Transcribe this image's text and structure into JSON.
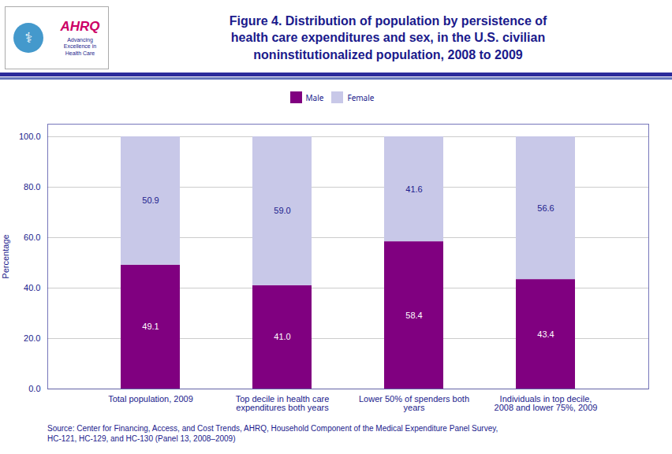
{
  "chart_data": {
    "type": "bar",
    "stacked": true,
    "title": "Figure 4. Distribution of population by persistence of\nhealth care expenditures and sex, in the U.S. civilian\nnoninstitutionalized  population, 2008 to 2009",
    "ylabel": "Percentage",
    "categories": [
      "Total population, 2009",
      "Top decile in health care\nexpenditures both years",
      "Lower 50% of spenders both\nyears",
      "Individuals in top decile,\n2008 and lower 75%, 2009"
    ],
    "series": [
      {
        "name": "Male",
        "color": "#800080",
        "values": [
          49.1,
          41.0,
          58.4,
          43.4
        ],
        "value_labels": [
          "49.1",
          "41.0",
          "58.4",
          "43.4"
        ]
      },
      {
        "name": "Female",
        "color": "#c8c8e8",
        "values": [
          50.9,
          59.0,
          41.6,
          56.6
        ],
        "value_labels": [
          "50.9",
          "59.0",
          "41.6",
          "56.6"
        ]
      }
    ],
    "ylim": [
      0,
      105
    ],
    "yticks": [
      {
        "value": 0.0,
        "label": "0.0"
      },
      {
        "value": 20.0,
        "label": "20.0"
      },
      {
        "value": 40.0,
        "label": "40.0"
      },
      {
        "value": 60.0,
        "label": "60.0"
      },
      {
        "value": 80.0,
        "label": "80.0"
      },
      {
        "value": 100.0,
        "label": "100.0"
      }
    ],
    "grid": true,
    "legend": "top",
    "data_labels": true,
    "annotations": [
      "⚕",
      "AHRQ",
      "Advancing\nExcellence in\nHealth Care",
      "Source: Center for Financing, Access, and Cost Trends, AHRQ, Household Component of the Medical Expenditure Panel Survey,\nHC-121, HC-129, and HC-130 (Panel 13, 2008–2009)"
    ]
  }
}
